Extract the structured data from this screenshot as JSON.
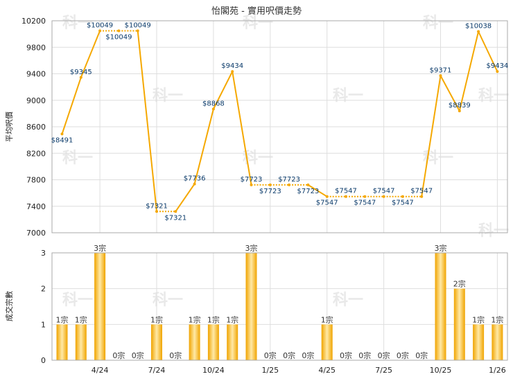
{
  "chart_data": [
    {
      "type": "line",
      "title": "怡閣苑 - 實用呎價走勢",
      "ylabel": "平均呎價",
      "ylim": [
        7000,
        10200
      ],
      "yticks": [
        7000,
        7400,
        7800,
        8200,
        8600,
        9000,
        9400,
        9800,
        10200
      ],
      "x_tick_labels": [
        "4/24",
        "7/24",
        "10/24",
        "1/25",
        "4/25",
        "7/25",
        "10/25",
        "1/26"
      ],
      "series": [
        {
          "values": [
            8491,
            9345,
            10049,
            10049,
            10049,
            7321,
            7321,
            7736,
            8868,
            9434,
            7723,
            7723,
            7723,
            7723,
            7547,
            7547,
            7547,
            7547,
            7547,
            7547,
            9371,
            8839,
            10038,
            9434
          ],
          "labels": [
            "$8491",
            "$9345",
            "$10049",
            "$10049",
            "$10049",
            "$7321",
            "$7321",
            "$7736",
            "$8868",
            "$9434",
            "$7723",
            "$7723",
            "$7723",
            "$7723",
            "$7547",
            "$7547",
            "$7547",
            "$7547",
            "$7547",
            "$7547",
            "$9371",
            "$8839",
            "$10038",
            "$9434"
          ],
          "actual": [
            true,
            true,
            true,
            false,
            true,
            true,
            false,
            true,
            true,
            true,
            true,
            false,
            true,
            false,
            true,
            false,
            false,
            false,
            false,
            true,
            true,
            true,
            true,
            true
          ]
        }
      ],
      "color": "#f5a800",
      "grid": true
    },
    {
      "type": "bar",
      "ylabel": "成交宗數",
      "ylim": [
        0,
        3
      ],
      "yticks": [
        0,
        1,
        2,
        3
      ],
      "x_tick_labels": [
        "4/24",
        "7/24",
        "10/24",
        "1/25",
        "4/25",
        "7/25",
        "10/25",
        "1/26"
      ],
      "values": [
        1,
        1,
        3,
        0,
        0,
        1,
        0,
        1,
        1,
        1,
        3,
        0,
        0,
        0,
        1,
        0,
        0,
        0,
        0,
        0,
        3,
        2,
        1,
        1
      ],
      "labels": [
        "1宗",
        "1宗",
        "3宗",
        "0宗",
        "0宗",
        "1宗",
        "0宗",
        "1宗",
        "1宗",
        "1宗",
        "3宗",
        "0宗",
        "0宗",
        "0宗",
        "1宗",
        "0宗",
        "0宗",
        "0宗",
        "0宗",
        "0宗",
        "3宗",
        "2宗",
        "1宗",
        "1宗"
      ],
      "color": "#f5a800",
      "grid": true
    }
  ],
  "watermark": "科一"
}
